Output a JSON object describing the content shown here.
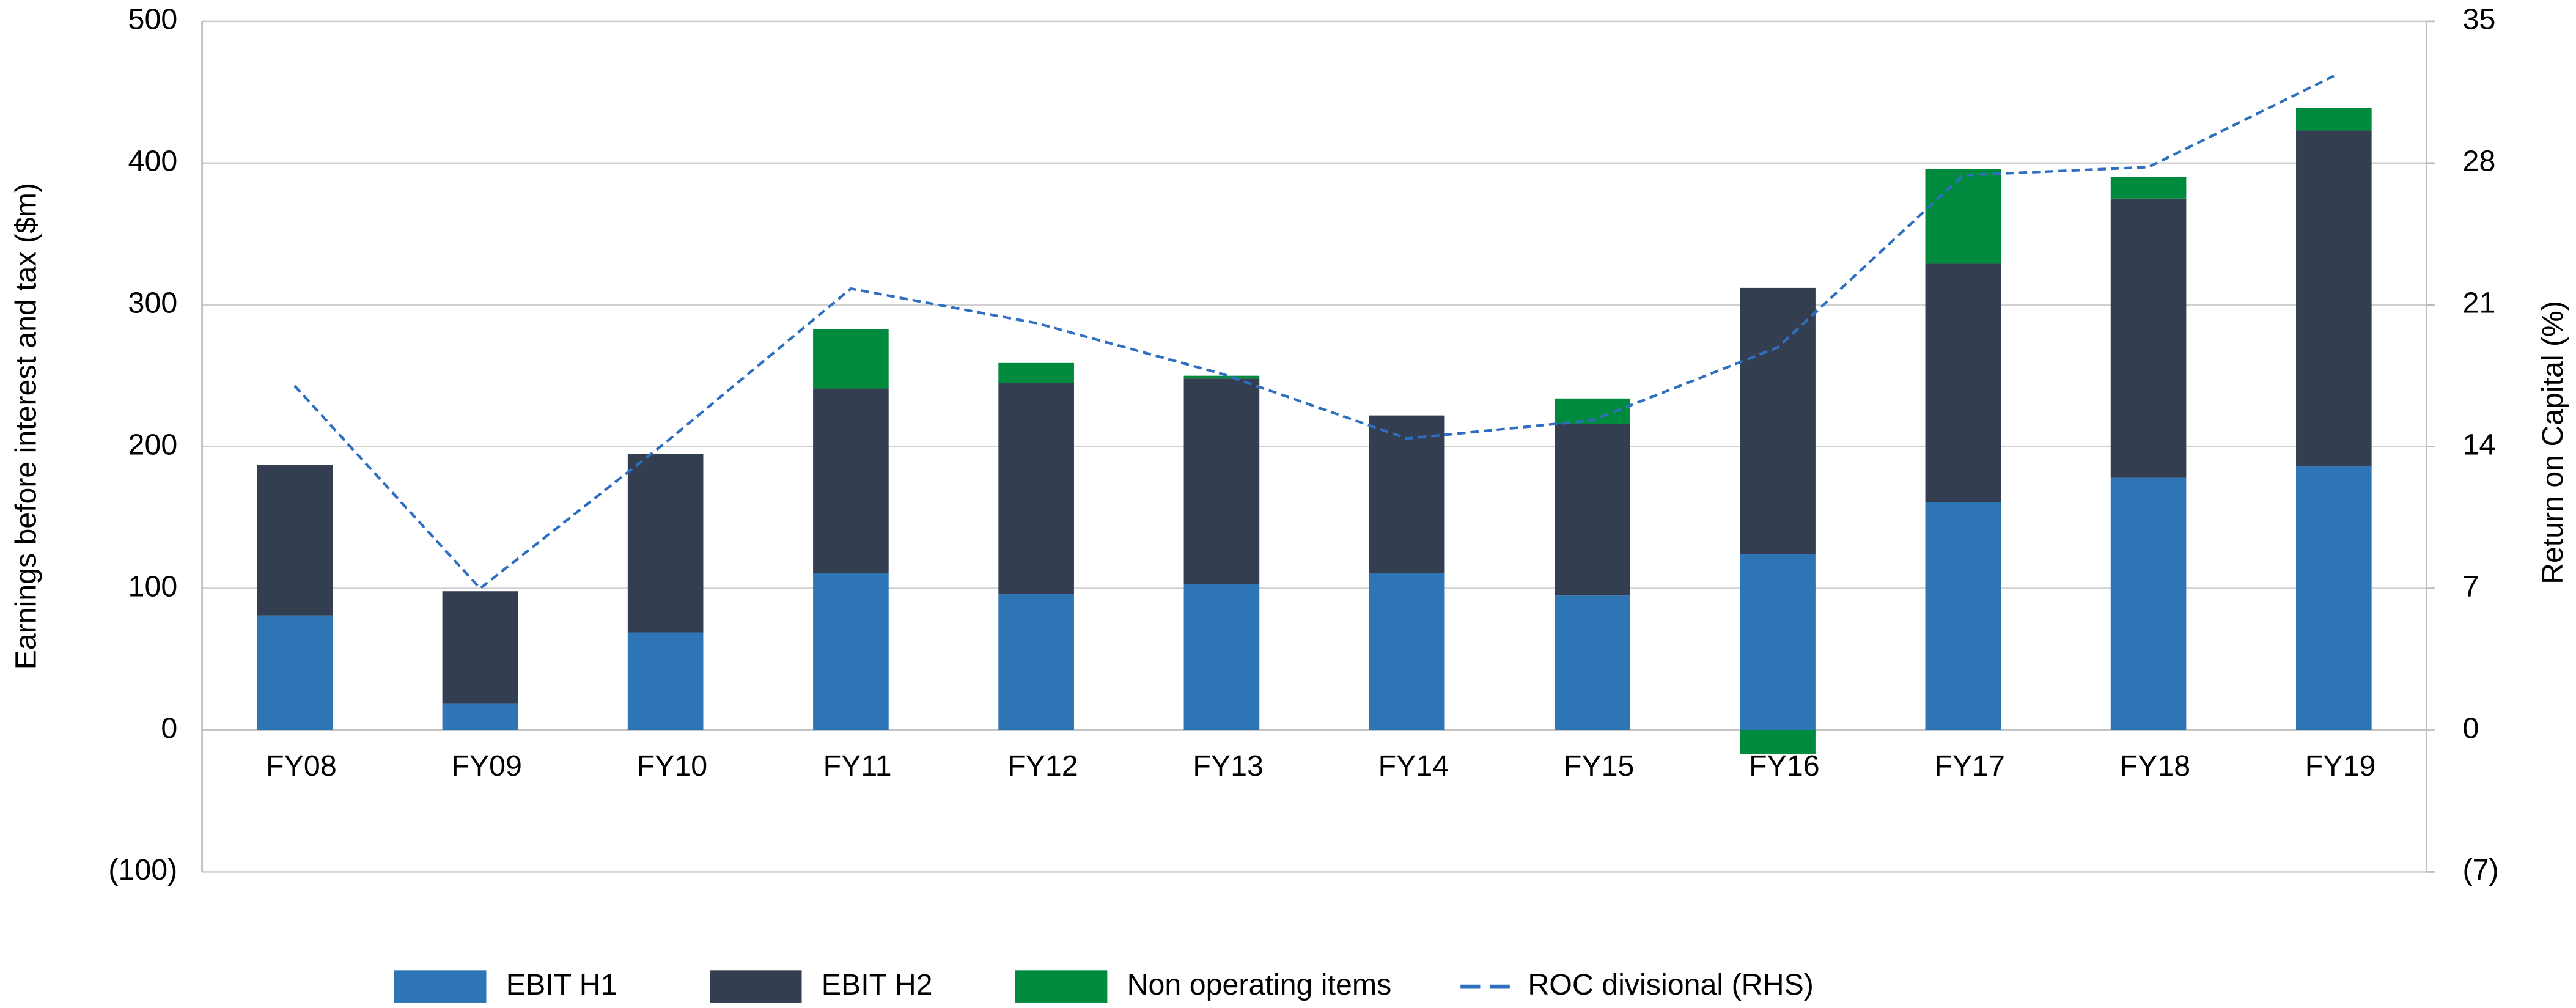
{
  "chart_data": {
    "type": "bar",
    "stacked": true,
    "categories": [
      "FY08",
      "FY09",
      "FY10",
      "FY11",
      "FY12",
      "FY13",
      "FY14",
      "FY15",
      "FY16",
      "FY17",
      "FY18",
      "FY19"
    ],
    "y_label": "Earnings before interest and tax ($m)",
    "y2_label": "Return on Capital (%)",
    "ylim": [
      -100,
      500
    ],
    "yticks": [
      {
        "value": -100,
        "label": "(100)"
      },
      0,
      100,
      200,
      300,
      400,
      500
    ],
    "y2lim": [
      -7,
      35
    ],
    "y2ticks": [
      {
        "value": -7,
        "label": "(7)"
      },
      0,
      7,
      14,
      21,
      28,
      35
    ],
    "grid": true,
    "legend": "bottom",
    "series": [
      {
        "name": "EBIT H1",
        "color": "#2e75b6",
        "values": [
          81,
          19,
          69,
          111,
          96,
          103,
          111,
          95,
          124,
          161,
          178,
          186
        ]
      },
      {
        "name": "EBIT H2",
        "color": "#333f50",
        "values": [
          106,
          79,
          126,
          130,
          149,
          145,
          111,
          121,
          188,
          168,
          197,
          237
        ]
      },
      {
        "name": "Non operating items",
        "color": "#008a3e",
        "values": [
          0,
          0,
          0,
          42,
          14,
          2,
          0,
          18,
          -17,
          67,
          15,
          16
        ]
      },
      {
        "name": "ROC divisional (RHS)",
        "color": "#2e6fc0",
        "type": "line",
        "dashed": true,
        "axis": "y2",
        "values": [
          17.0,
          7.0,
          14.2,
          21.8,
          20.1,
          17.6,
          14.4,
          15.3,
          18.9,
          27.4,
          27.8,
          32.3
        ]
      }
    ]
  }
}
